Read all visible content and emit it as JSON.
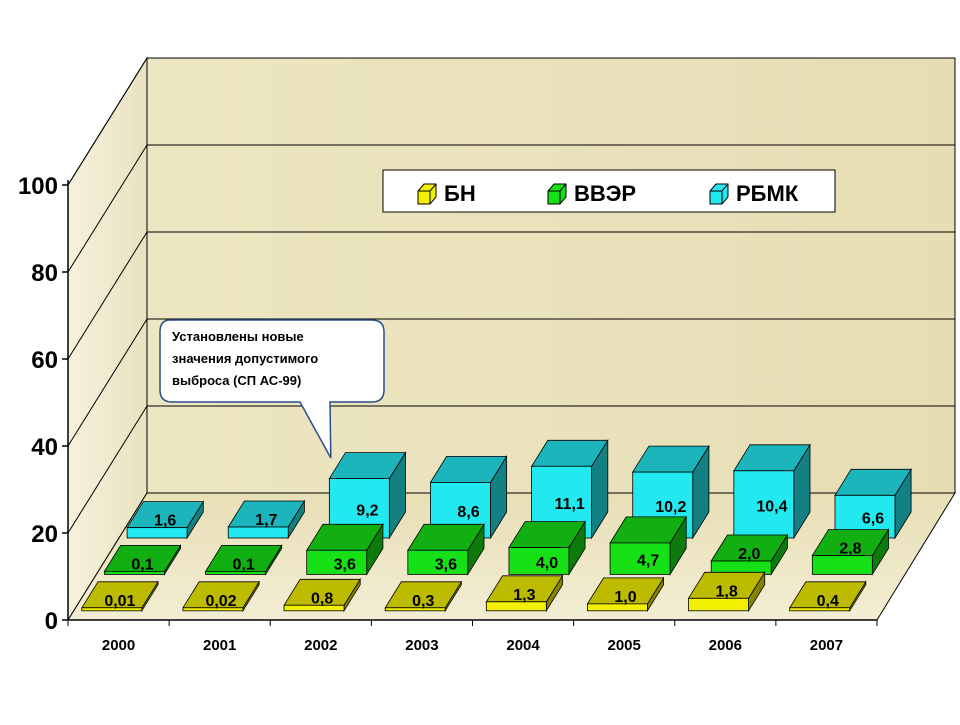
{
  "chart_data": {
    "type": "bar",
    "title": "",
    "xlabel": "",
    "ylabel": "",
    "categories": [
      "2000",
      "2001",
      "2002",
      "2003",
      "2004",
      "2005",
      "2006",
      "2007"
    ],
    "ylim": [
      0,
      100
    ],
    "yticks": [
      "0",
      "20",
      "40",
      "60",
      "80",
      "100"
    ],
    "grid": true,
    "legend_position": "top-right",
    "series": [
      {
        "name": "БН",
        "color": "#f2f000",
        "values": [
          0.01,
          0.02,
          0.8,
          0.3,
          1.3,
          1.0,
          1.8,
          0.4
        ],
        "labels": [
          "0,01",
          "0,02",
          "0,8",
          "0,3",
          "1,3",
          "1,0",
          "1,8",
          "0,4"
        ]
      },
      {
        "name": "ВВЭР",
        "color": "#16e016",
        "values": [
          0.1,
          0.1,
          3.6,
          3.6,
          4.0,
          4.7,
          2.0,
          2.8
        ],
        "labels": [
          "0,1",
          "0,1",
          "3,6",
          "3,6",
          "4,0",
          "4,7",
          "2,0",
          "2,8"
        ]
      },
      {
        "name": "РБМК",
        "color": "#22e8f0",
        "values": [
          1.6,
          1.7,
          9.2,
          8.6,
          11.1,
          10.2,
          10.4,
          6.6
        ],
        "labels": [
          "1,6",
          "1,7",
          "9,2",
          "8,6",
          "11,1",
          "10,2",
          "10,4",
          "6,6"
        ]
      }
    ],
    "annotation": {
      "lines": [
        "Установлены новые",
        "значения допустимого",
        "выброса (СП АС-99)"
      ],
      "points_to_category": "2002"
    }
  }
}
